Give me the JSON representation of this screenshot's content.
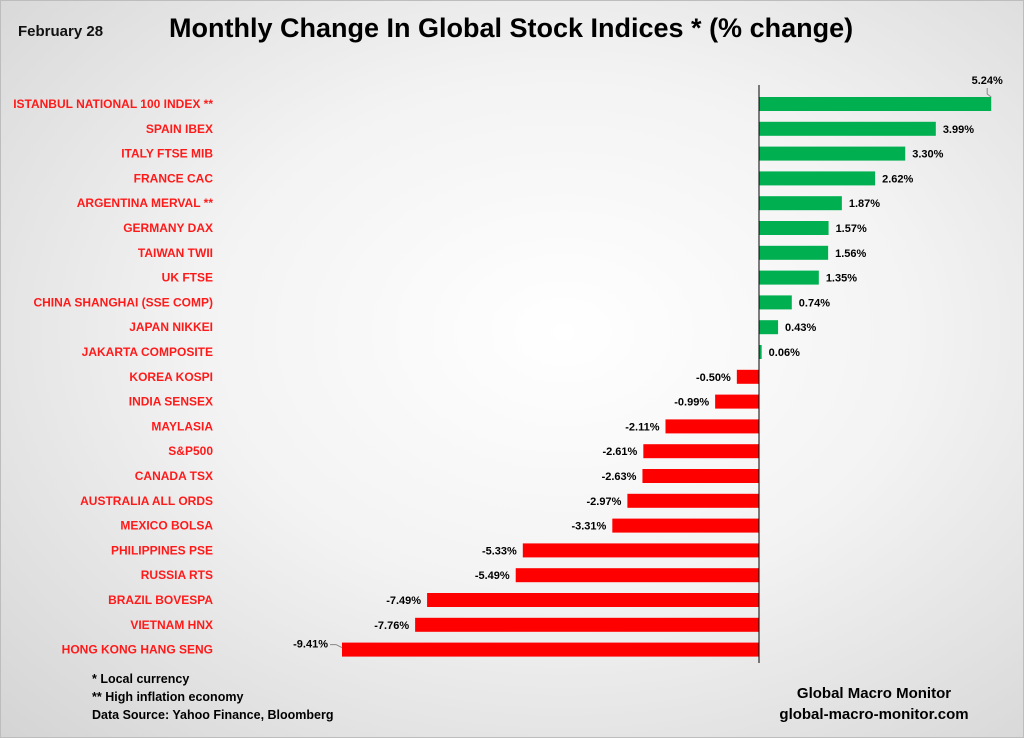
{
  "header": {
    "date": "February 28",
    "title": "Monthly Change In Global Stock Indices * (% change)"
  },
  "chart_data": {
    "type": "bar",
    "orientation": "horizontal",
    "title": "Monthly Change In Global Stock Indices * (% change)",
    "xlabel": "",
    "ylabel": "",
    "unit": "%",
    "xlim": [
      -9.41,
      5.24
    ],
    "grid": false,
    "categories": [
      "ISTANBUL NATIONAL 100 INDEX **",
      "SPAIN IBEX",
      "ITALY FTSE MIB",
      "FRANCE CAC",
      "ARGENTINA MERVAL **",
      "GERMANY DAX",
      "TAIWAN  TWII",
      "UK FTSE",
      "CHINA SHANGHAI (SSE COMP)",
      "JAPAN NIKKEI",
      "JAKARTA COMPOSITE",
      "KOREA KOSPI",
      "INDIA SENSEX",
      "MAYLASIA",
      "S&P500",
      "CANADA TSX",
      "AUSTRALIA ALL ORDS",
      "MEXICO BOLSA",
      "PHILIPPINES PSE",
      "RUSSIA RTS",
      "BRAZIL BOVESPA",
      "VIETNAM HNX",
      "HONG KONG HANG SENG"
    ],
    "values": [
      5.24,
      3.99,
      3.3,
      2.62,
      1.87,
      1.57,
      1.56,
      1.35,
      0.74,
      0.43,
      0.06,
      -0.5,
      -0.99,
      -2.11,
      -2.61,
      -2.63,
      -2.97,
      -3.31,
      -5.33,
      -5.49,
      -7.49,
      -7.76,
      -9.41
    ],
    "value_labels": [
      "5.24%",
      "3.99%",
      "3.30%",
      "2.62%",
      "1.87%",
      "1.57%",
      "1.56%",
      "1.35%",
      "0.74%",
      "0.43%",
      "0.06%",
      "-0.50%",
      "-0.99%",
      "-2.11%",
      "-2.61%",
      "-2.63%",
      "-2.97%",
      "-3.31%",
      "-5.33%",
      "-5.49%",
      "-7.49%",
      "-7.76%",
      "-9.41%"
    ],
    "colors": {
      "positive": "#00b050",
      "negative": "#ff0000",
      "category_label": "#ff1a1a"
    }
  },
  "footnotes": [
    "* Local currency",
    "**  High inflation economy",
    "Data Source:  Yahoo Finance, Bloomberg"
  ],
  "credit": {
    "name": "Global Macro Monitor",
    "url": "global-macro-monitor.com"
  }
}
